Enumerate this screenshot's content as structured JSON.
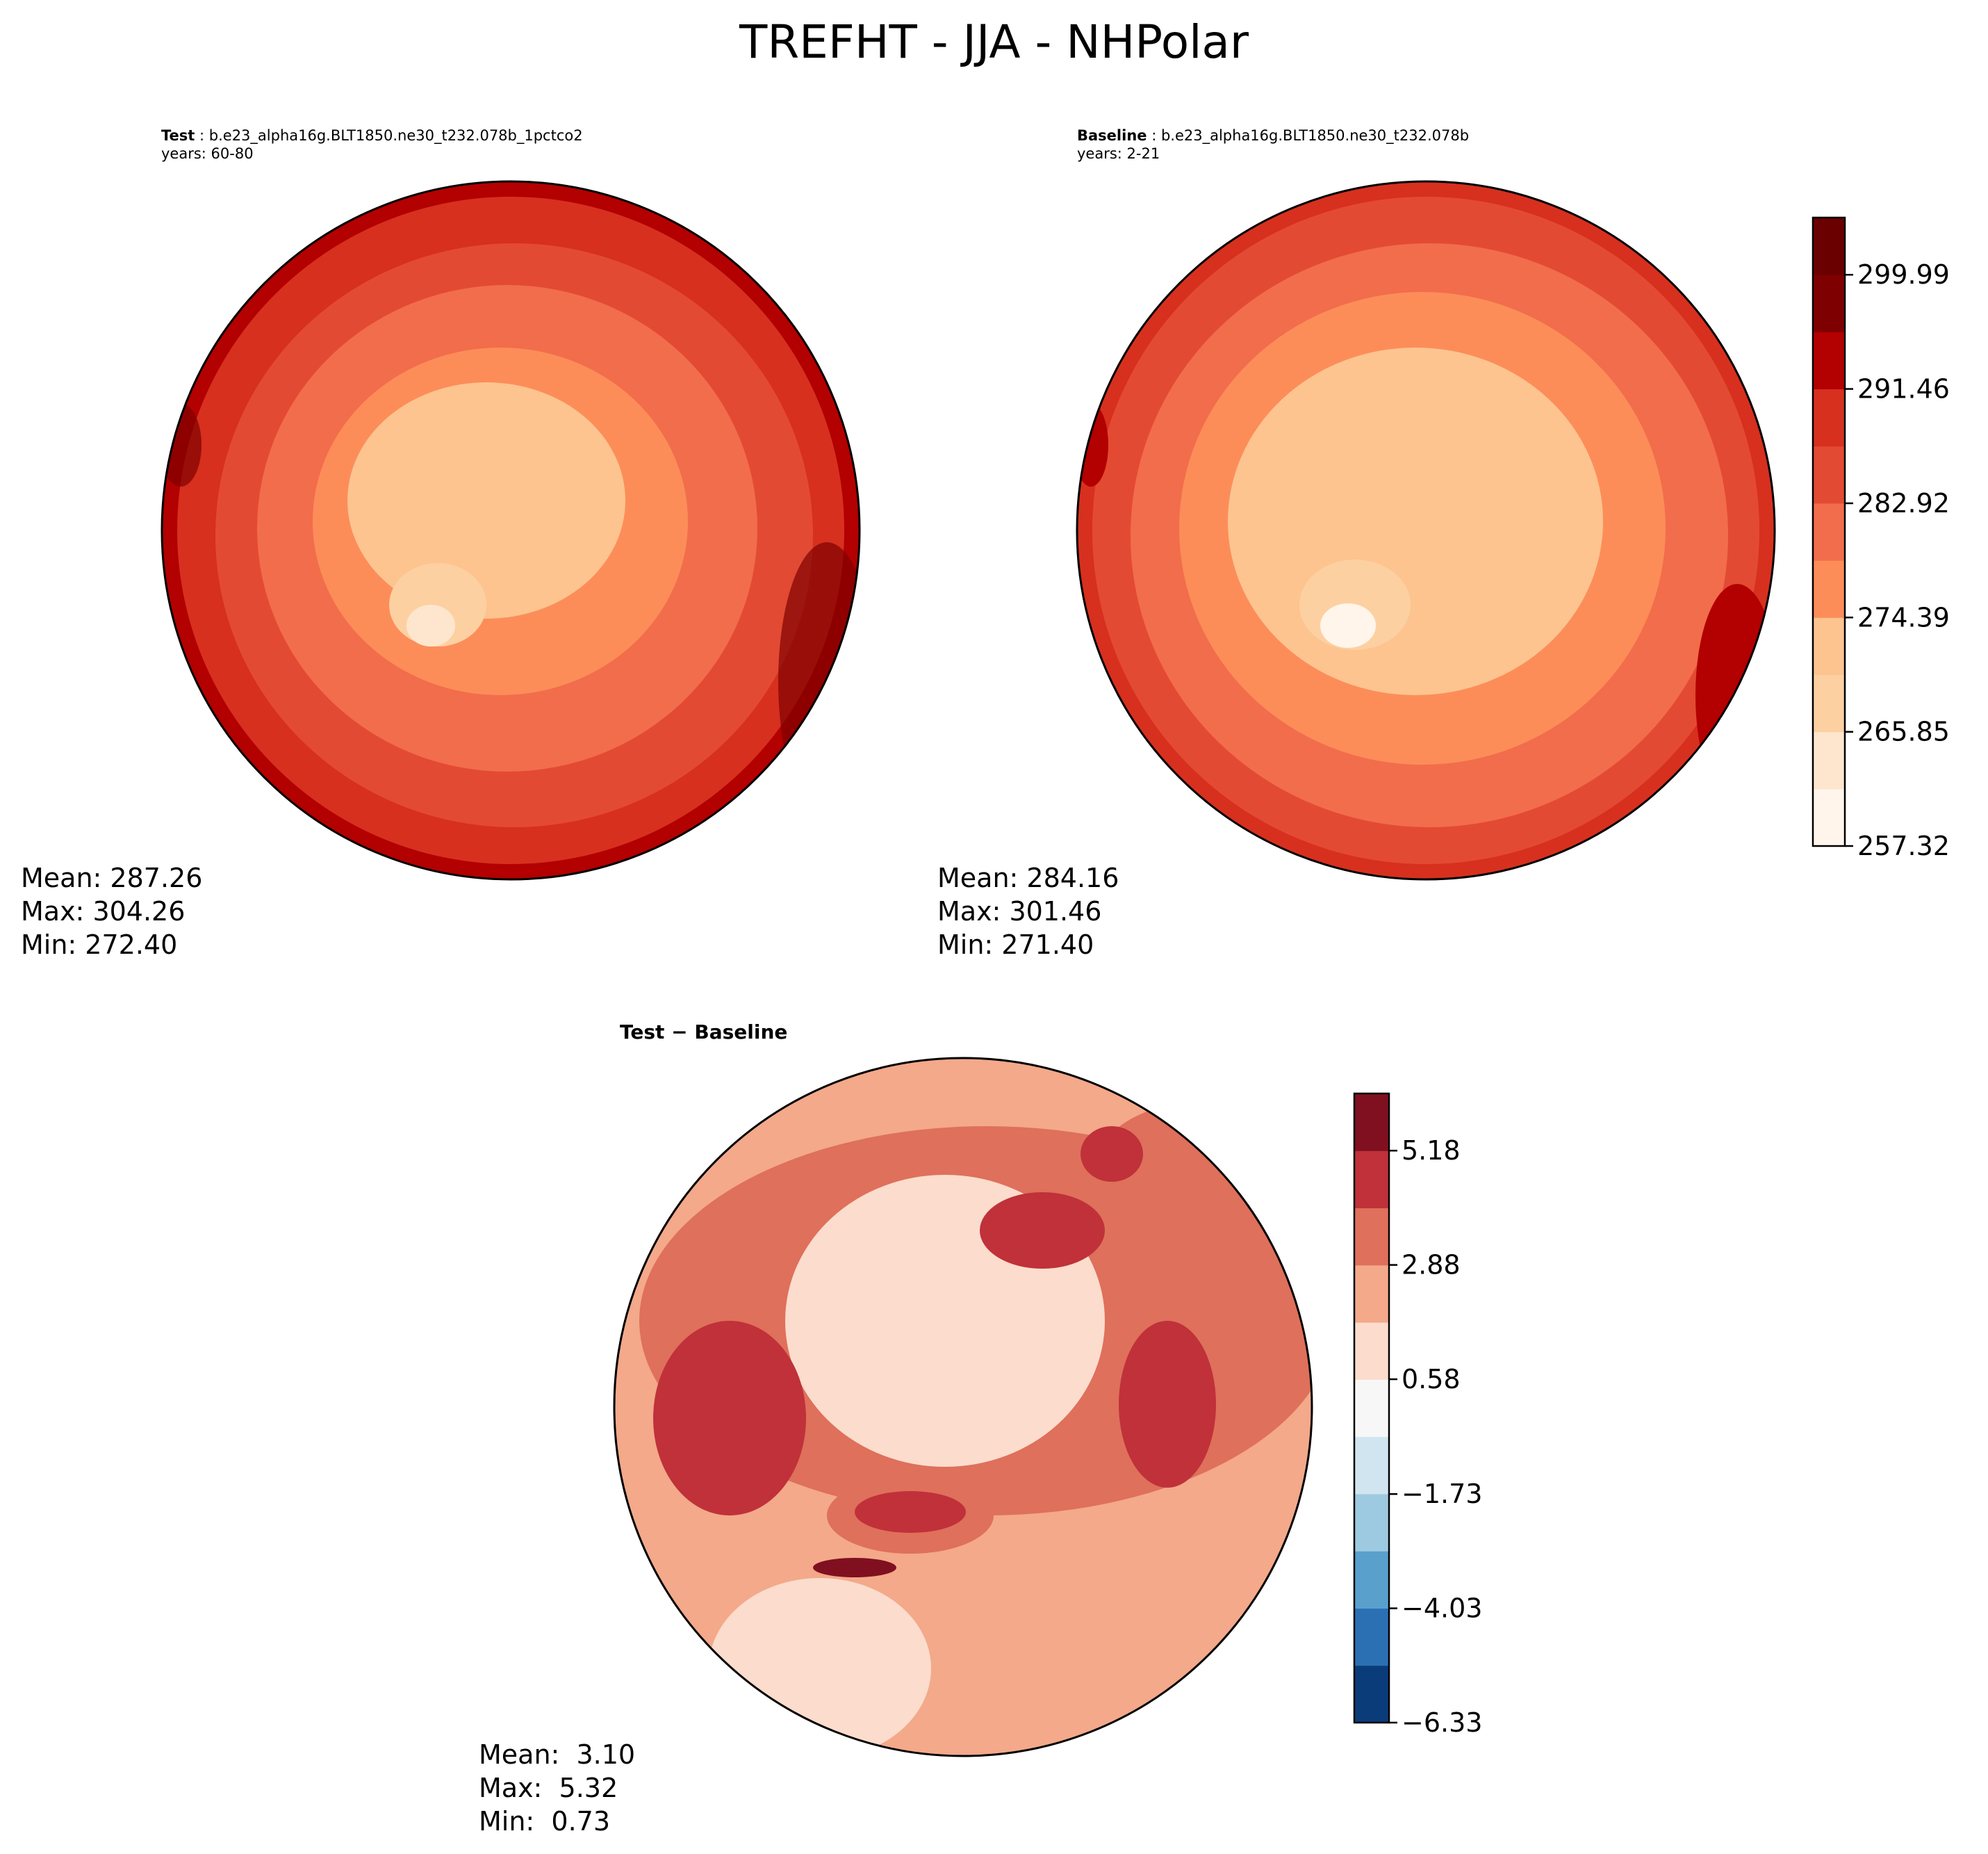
{
  "figure": {
    "title": "TREFHT - JJA - NHPolar"
  },
  "panels": {
    "test": {
      "name": "Test",
      "case": "b.e23_alpha16g.BLT1850.ne30_t232.078b_1pctco2",
      "years": "years: 60-80",
      "mean": "Mean: 287.26",
      "max": "Max: 304.26",
      "min": "Min: 272.40"
    },
    "baseline": {
      "name": "Baseline",
      "case": "b.e23_alpha16g.BLT1850.ne30_t232.078b",
      "years": "years: 2-21",
      "mean": "Mean: 284.16",
      "max": "Max: 301.46",
      "min": "Min: 271.40"
    },
    "diff": {
      "title": "Test − Baseline",
      "mean": "Mean:  3.10",
      "max": "Max:  5.32",
      "min": "Min:  0.73"
    }
  },
  "chart_data": [
    {
      "type": "heatmap",
      "projection": "north-polar-stereographic",
      "title": "Test",
      "variable": "TREFHT",
      "season": "JJA",
      "stats": {
        "mean": 287.26,
        "max": 304.26,
        "min": 272.4
      },
      "colorbar": {
        "colormap": "OrRd",
        "range": [
          257.32,
          304.26
        ],
        "ticks": [
          257.32,
          265.85,
          274.39,
          282.92,
          291.46,
          299.99
        ],
        "tick_labels": [
          "257.32",
          "265.85",
          "274.39",
          "282.92",
          "291.46",
          "299.99"
        ],
        "levels": 11
      }
    },
    {
      "type": "heatmap",
      "projection": "north-polar-stereographic",
      "title": "Baseline",
      "variable": "TREFHT",
      "season": "JJA",
      "stats": {
        "mean": 284.16,
        "max": 301.46,
        "min": 271.4
      },
      "colorbar": "shared with Test"
    },
    {
      "type": "heatmap",
      "projection": "north-polar-stereographic",
      "title": "Test − Baseline",
      "stats": {
        "mean": 3.1,
        "max": 5.32,
        "min": 0.73
      },
      "colorbar": {
        "colormap": "RdBu_r",
        "range": [
          -6.33,
          6.33
        ],
        "ticks": [
          -6.33,
          -4.03,
          -1.73,
          0.58,
          2.88,
          5.18
        ],
        "tick_labels": [
          "−6.33",
          "−4.03",
          "−1.73",
          "0.58",
          "2.88",
          "5.18"
        ],
        "levels": 11
      }
    }
  ],
  "colors": {
    "seq": [
      "#fff5eb",
      "#fee6ce",
      "#fdd0a2",
      "#fdc48f",
      "#fc8d59",
      "#f26d4b",
      "#e34a33",
      "#d7301f",
      "#b30000",
      "#7f0000",
      "#6a0000"
    ],
    "div": [
      "#0b3c7a",
      "#2c70b4",
      "#5aa0cd",
      "#9ecae1",
      "#d1e5f0",
      "#f7f7f7",
      "#fbdccd",
      "#f3a98a",
      "#df705b",
      "#c0313a",
      "#80101f"
    ]
  }
}
